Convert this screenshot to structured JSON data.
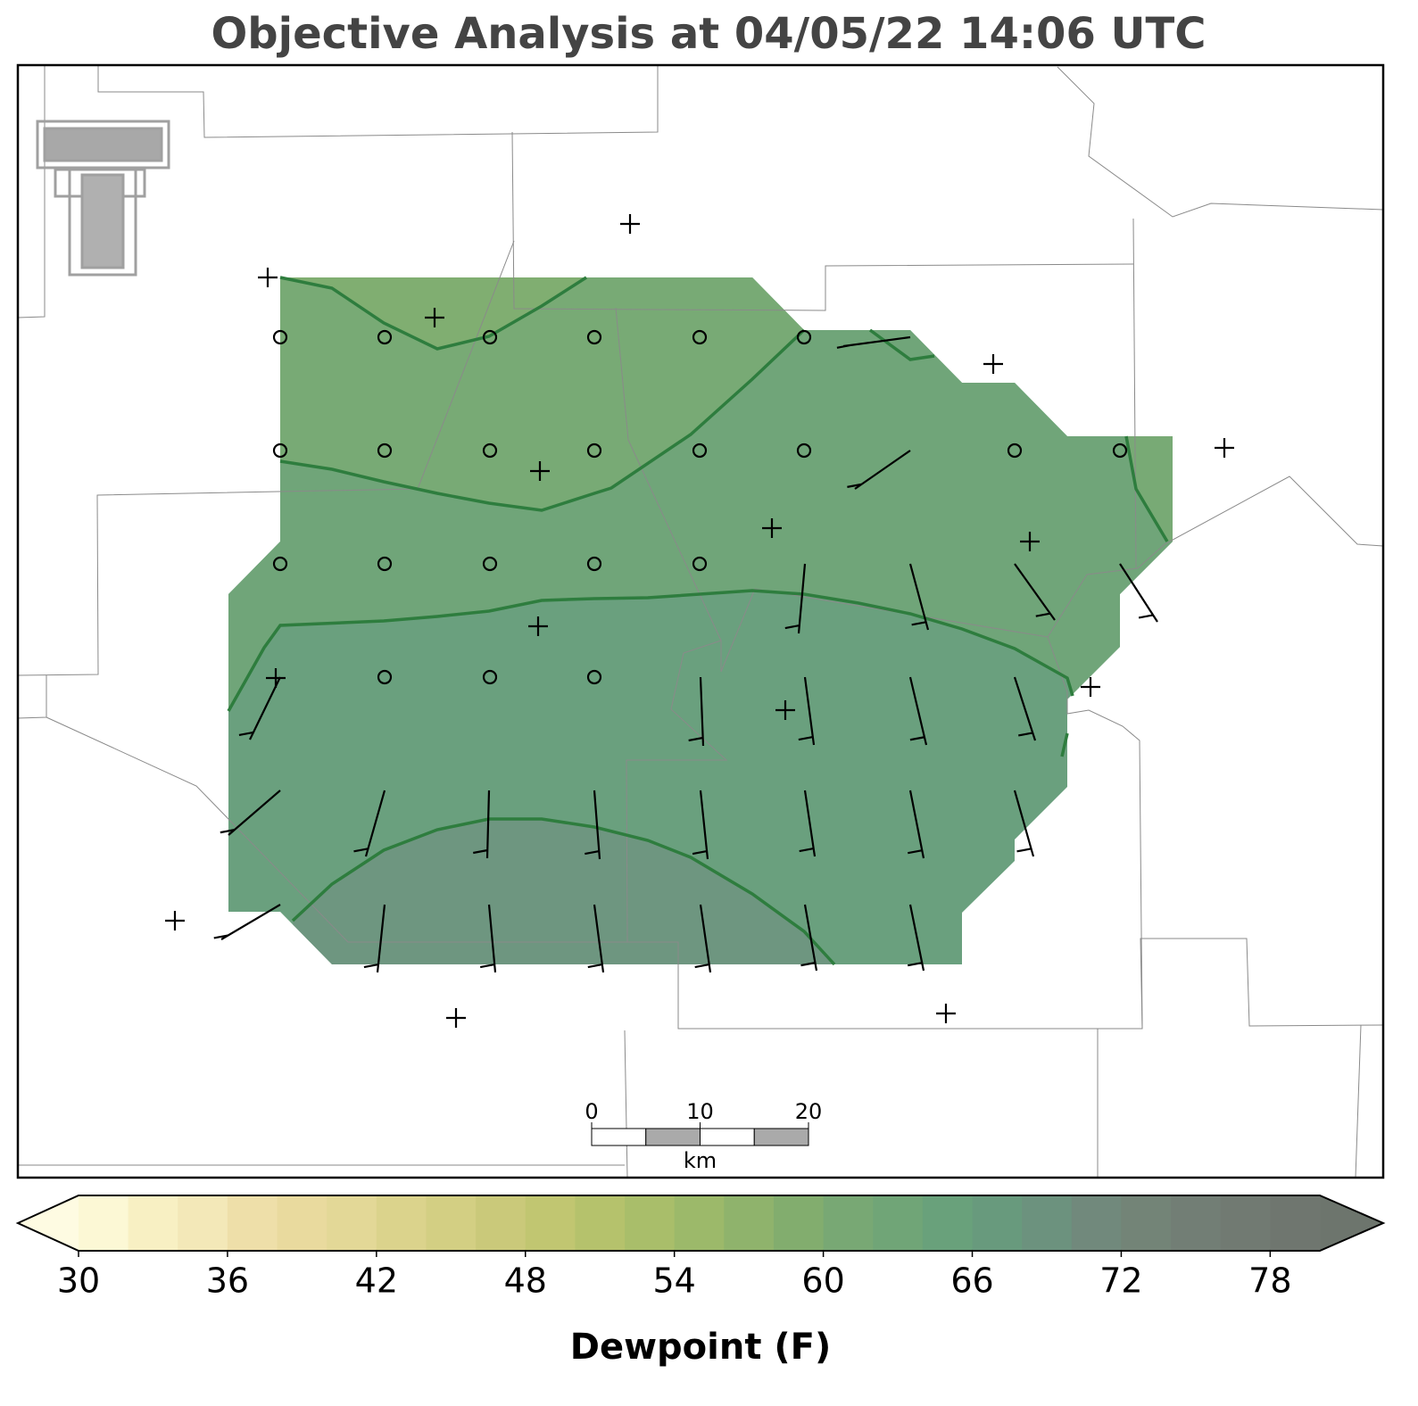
{
  "title": "Objective Analysis at 04/05/22 14:06 UTC",
  "chart_data": {
    "type": "colorbar",
    "label": "Dewpoint (F)",
    "xlim": [
      30,
      80
    ],
    "xticks": [
      30,
      36,
      42,
      48,
      54,
      60,
      66,
      72,
      78
    ],
    "colors": [
      "#fcf8d5",
      "#f8f0c3",
      "#f3e8b8",
      "#eedfa9",
      "#e9da9e",
      "#e3d897",
      "#dbd38c",
      "#d3cf83",
      "#cac97a",
      "#c1c671",
      "#b5c26c",
      "#a9be6a",
      "#9cb96a",
      "#8fb36c",
      "#82ad6e",
      "#78a874",
      "#70a577",
      "#69a17b",
      "#689a7d",
      "#6c927e",
      "#71897c",
      "#738477",
      "#727e75",
      "#717a72",
      "#6f766f"
    ],
    "extend_colors": [
      "#fefbe2",
      "#6d756d"
    ]
  },
  "scale_bar": {
    "ticks": [
      0,
      10,
      20
    ],
    "unit": "km"
  }
}
